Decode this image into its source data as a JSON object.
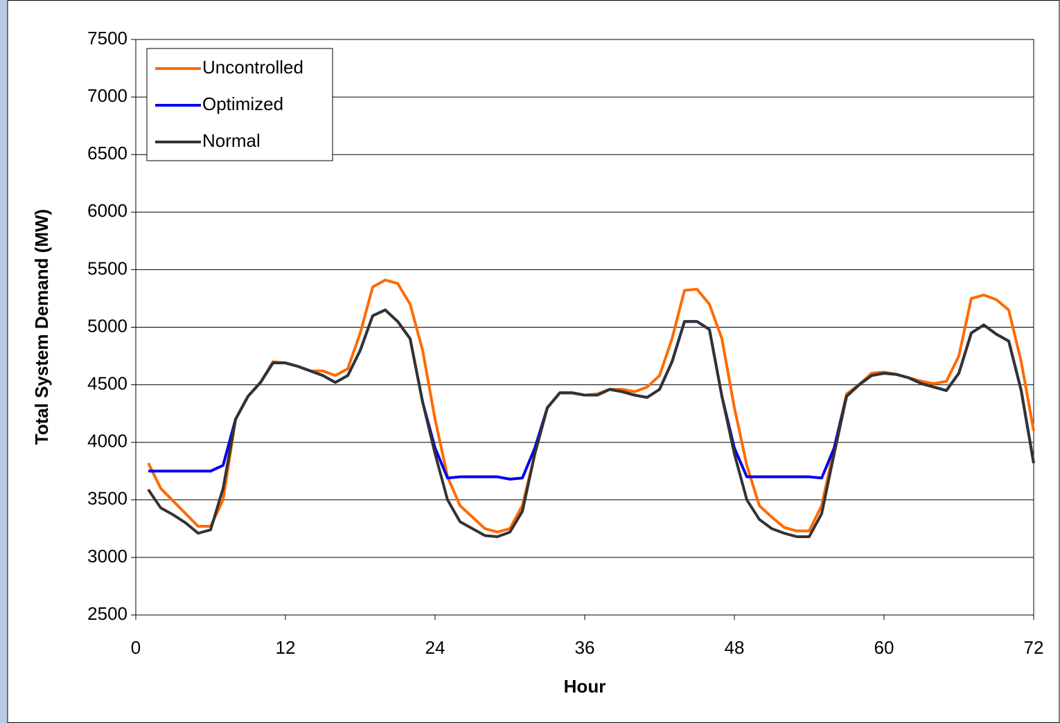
{
  "chart_data": {
    "type": "line",
    "x_label": "Hour",
    "y_label": "Total System Demand (MW)",
    "x": [
      1,
      2,
      3,
      4,
      5,
      6,
      7,
      8,
      9,
      10,
      11,
      12,
      13,
      14,
      15,
      16,
      17,
      18,
      19,
      20,
      21,
      22,
      23,
      24,
      25,
      26,
      27,
      28,
      29,
      30,
      31,
      32,
      33,
      34,
      35,
      36,
      37,
      38,
      39,
      40,
      41,
      42,
      43,
      44,
      45,
      46,
      47,
      48,
      49,
      50,
      51,
      52,
      53,
      54,
      55,
      56,
      57,
      58,
      59,
      60,
      61,
      62,
      63,
      64,
      65,
      66,
      67,
      68,
      69,
      70,
      71,
      72
    ],
    "series": [
      {
        "name": "Uncontrolled",
        "color": "#ff6a00",
        "values": [
          3820,
          3600,
          3490,
          3380,
          3270,
          3270,
          3500,
          4200,
          4400,
          4520,
          4700,
          4690,
          4660,
          4620,
          4620,
          4580,
          4640,
          4950,
          5350,
          5410,
          5380,
          5200,
          4800,
          4200,
          3700,
          3450,
          3350,
          3250,
          3220,
          3250,
          3450,
          3900,
          4300,
          4430,
          4430,
          4410,
          4420,
          4460,
          4460,
          4440,
          4480,
          4580,
          4900,
          5320,
          5330,
          5200,
          4900,
          4300,
          3800,
          3450,
          3350,
          3260,
          3230,
          3230,
          3450,
          3950,
          4420,
          4500,
          4600,
          4610,
          4590,
          4560,
          4530,
          4510,
          4530,
          4750,
          5250,
          5280,
          5240,
          5150,
          4700,
          4100
        ]
      },
      {
        "name": "Optimized",
        "color": "#0000ee",
        "values": [
          3750,
          3750,
          3750,
          3750,
          3750,
          3750,
          3800,
          4200,
          4400,
          4520,
          4690,
          4690,
          4660,
          4620,
          4580,
          4520,
          4580,
          4800,
          5100,
          5150,
          5050,
          4900,
          4350,
          3950,
          3690,
          3700,
          3700,
          3700,
          3700,
          3680,
          3690,
          3950,
          4300,
          4430,
          4430,
          4410,
          4410,
          4460,
          4440,
          4410,
          4390,
          4460,
          4700,
          5050,
          5050,
          4980,
          4400,
          3950,
          3700,
          3700,
          3700,
          3700,
          3700,
          3700,
          3690,
          3950,
          4400,
          4500,
          4580,
          4600,
          4590,
          4560,
          4510,
          4480,
          4450,
          4600,
          4950,
          5020,
          4940,
          4880,
          4450,
          3820
        ]
      },
      {
        "name": "Normal",
        "color": "#333333",
        "values": [
          3590,
          3430,
          3370,
          3300,
          3210,
          3240,
          3600,
          4200,
          4400,
          4520,
          4690,
          4690,
          4660,
          4620,
          4580,
          4520,
          4580,
          4800,
          5100,
          5150,
          5050,
          4900,
          4350,
          3900,
          3500,
          3310,
          3250,
          3190,
          3180,
          3220,
          3400,
          3900,
          4300,
          4430,
          4430,
          4410,
          4410,
          4460,
          4440,
          4410,
          4390,
          4460,
          4700,
          5050,
          5050,
          4980,
          4400,
          3900,
          3500,
          3330,
          3250,
          3210,
          3180,
          3180,
          3380,
          3900,
          4400,
          4500,
          4580,
          4600,
          4590,
          4560,
          4510,
          4480,
          4450,
          4600,
          4950,
          5020,
          4940,
          4880,
          4450,
          3820
        ]
      }
    ],
    "xlim": [
      0,
      72
    ],
    "xticks": [
      0,
      12,
      24,
      36,
      48,
      60,
      72
    ],
    "ylim": [
      2500,
      7500
    ],
    "yticks": [
      2500,
      3000,
      3500,
      4000,
      4500,
      5000,
      5500,
      6000,
      6500,
      7000,
      7500
    ],
    "grid": true,
    "legend": "upper left"
  }
}
